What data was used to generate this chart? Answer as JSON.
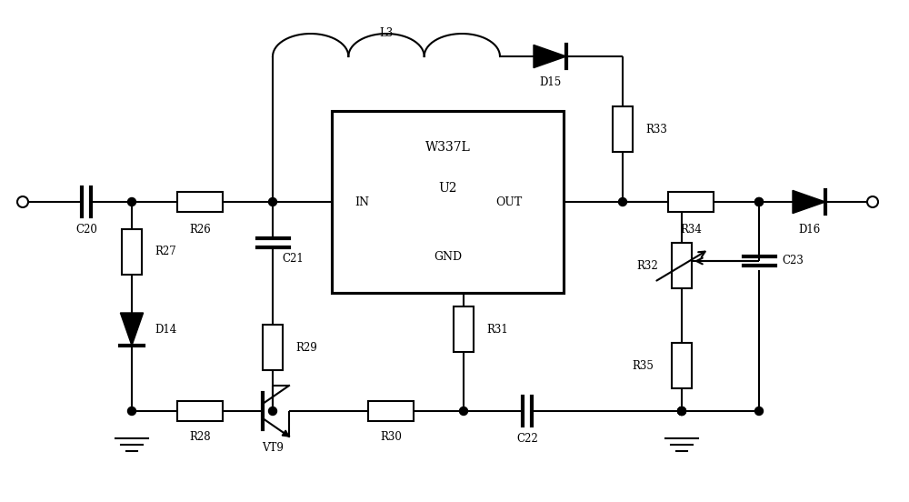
{
  "bg": "#ffffff",
  "lc": "#000000",
  "lw": 1.5,
  "fw": 10.0,
  "fh": 5.52,
  "dpi": 100,
  "xlim": [
    0,
    100
  ],
  "ylim": [
    0,
    55.2
  ]
}
